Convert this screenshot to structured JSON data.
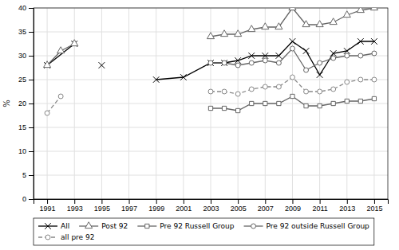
{
  "chart_data": {
    "type": "line",
    "ylabel": "%",
    "xlim": [
      1990,
      2016
    ],
    "ylim": [
      0,
      40
    ],
    "xticks": [
      1991,
      1993,
      1995,
      1997,
      1999,
      2001,
      2003,
      2005,
      2007,
      2009,
      2011,
      2013,
      2015
    ],
    "yticks": [
      0,
      5,
      10,
      15,
      20,
      25,
      30,
      35,
      40
    ],
    "grid": true,
    "legend": "bottom",
    "series": [
      {
        "name": "All",
        "color": "#000000",
        "marker": "x",
        "line_style": "solid",
        "x": [
          1991,
          1993,
          null,
          1995,
          null,
          1999,
          2001,
          2003,
          2004,
          2005,
          2006,
          2007,
          2008,
          2009,
          2010,
          2011,
          2012,
          2013,
          2014,
          2015
        ],
        "values": [
          28.0,
          32.5,
          null,
          28.0,
          null,
          25.0,
          25.5,
          28.5,
          28.5,
          29.0,
          30.0,
          30.0,
          30.0,
          33.0,
          31.0,
          26.0,
          30.5,
          31.0,
          33.0,
          33.0
        ]
      },
      {
        "name": "Post 92",
        "color": "#666666",
        "marker": "triangle",
        "line_style": "solid",
        "x": [
          1991,
          1992,
          1993,
          null,
          2003,
          2004,
          2005,
          2006,
          2007,
          2008,
          2009,
          2010,
          2011,
          2012,
          2013,
          2014,
          2015
        ],
        "values": [
          28.0,
          31.0,
          32.5,
          null,
          34.0,
          34.5,
          34.5,
          35.5,
          36.0,
          36.0,
          40.0,
          36.5,
          36.5,
          37.0,
          38.5,
          39.5,
          40.0
        ]
      },
      {
        "name": "Pre 92 Russell Group",
        "color": "#666666",
        "marker": "square",
        "line_style": "solid",
        "x": [
          2003,
          2004,
          2005,
          2006,
          2007,
          2008,
          2009,
          2010,
          2011,
          2012,
          2013,
          2014,
          2015
        ],
        "values": [
          19.0,
          19.0,
          18.5,
          20.0,
          20.0,
          20.0,
          21.5,
          19.5,
          19.5,
          20.0,
          20.5,
          20.5,
          21.0
        ]
      },
      {
        "name": "Pre 92 outside Russell Group",
        "color": "#666666",
        "marker": "circle",
        "line_style": "solid",
        "x": [
          2003,
          2004,
          2005,
          2006,
          2007,
          2008,
          2009,
          2010,
          2011,
          2012,
          2013,
          2014,
          2015
        ],
        "values": [
          28.5,
          28.5,
          28.0,
          28.5,
          29.0,
          28.5,
          31.5,
          27.0,
          28.5,
          29.5,
          30.0,
          30.0,
          30.5
        ]
      },
      {
        "name": "all pre 92",
        "color": "#888888",
        "marker": "circle",
        "line_style": "dashed",
        "x": [
          1991,
          1992,
          null,
          2003,
          2004,
          2005,
          2006,
          2007,
          2008,
          2009,
          2010,
          2011,
          2012,
          2013,
          2014,
          2015
        ],
        "values": [
          18.0,
          21.5,
          null,
          22.5,
          22.5,
          22.0,
          23.0,
          23.5,
          23.5,
          25.5,
          22.5,
          22.5,
          23.0,
          24.5,
          25.0,
          25.0
        ]
      }
    ]
  }
}
